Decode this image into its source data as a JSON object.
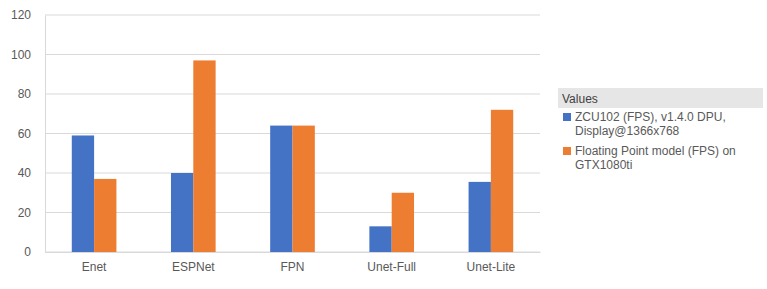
{
  "chart_data": {
    "type": "bar",
    "categories": [
      "Enet",
      "ESPNet",
      "FPN",
      "Unet-Full",
      "Unet-Lite"
    ],
    "series": [
      {
        "name": "ZCU102 (FPS), v1.4.0 DPU, Display@1366x768",
        "color": "#4472c4",
        "values": [
          59,
          40,
          64,
          13,
          35.5
        ]
      },
      {
        "name": "Floating Point model (FPS) on GTX1080ti",
        "color": "#ed7d31",
        "values": [
          37,
          97,
          64,
          30,
          72
        ]
      }
    ],
    "ylim": [
      0,
      120
    ],
    "yticks": [
      0,
      20,
      40,
      60,
      80,
      100,
      120
    ],
    "grid": true,
    "legend": "right",
    "legend_title": "Values"
  }
}
